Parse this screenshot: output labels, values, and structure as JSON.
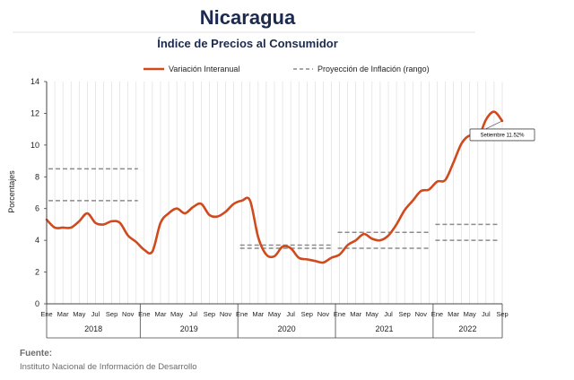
{
  "chart_data": {
    "type": "line",
    "title": "Nicaragua",
    "subtitle": "Índice de Precios al Consumidor",
    "ylabel": "Porcentajes",
    "ylim": [
      0,
      14
    ],
    "yticks": [
      "0",
      "2",
      "4",
      "6",
      "8",
      "10",
      "12",
      "14"
    ],
    "grid": "vertical",
    "legend_position": "top",
    "month_labels": [
      "Ene",
      "Mar",
      "May",
      "Jul",
      "Sep",
      "Nov"
    ],
    "last_month_labels": [
      "Ene",
      "Mar",
      "May",
      "Jul",
      "Sep"
    ],
    "years": [
      "2018",
      "2019",
      "2020",
      "2021",
      "2022"
    ],
    "series": [
      {
        "name": "Variación Interanual",
        "color": "#d04a1e",
        "values": [
          5.3,
          4.8,
          4.8,
          4.8,
          5.2,
          5.7,
          5.1,
          5.0,
          5.2,
          5.1,
          4.3,
          3.9,
          3.4,
          3.3,
          5.1,
          5.7,
          6.0,
          5.7,
          6.1,
          6.3,
          5.6,
          5.5,
          5.8,
          6.3,
          6.5,
          6.5,
          4.2,
          3.1,
          3.0,
          3.6,
          3.5,
          2.9,
          2.8,
          2.7,
          2.6,
          2.9,
          3.1,
          3.7,
          4.0,
          4.4,
          4.1,
          4.0,
          4.3,
          5.0,
          5.9,
          6.5,
          7.1,
          7.2,
          7.7,
          7.8,
          8.9,
          10.1,
          10.6,
          10.4,
          11.6,
          12.1,
          11.52
        ]
      },
      {
        "name": "Proyección de Inflación (rango)",
        "color": "#8c8c8c",
        "style": "dashed",
        "ranges": [
          {
            "year": "2018",
            "low": 6.5,
            "high": 8.5
          },
          {
            "year": "2020",
            "low": 3.5,
            "high": 3.7
          },
          {
            "year": "2021",
            "low": 3.5,
            "high": 4.5
          },
          {
            "year": "2022",
            "low": 4.0,
            "high": 5.0
          }
        ]
      }
    ],
    "annotations": [
      {
        "text": "Setiembre 11.52%",
        "x_index": 56,
        "y": 11.52
      }
    ]
  },
  "source": {
    "heading": "Fuente:",
    "text": "Instituto Nacional de Información de  Desarrollo"
  }
}
